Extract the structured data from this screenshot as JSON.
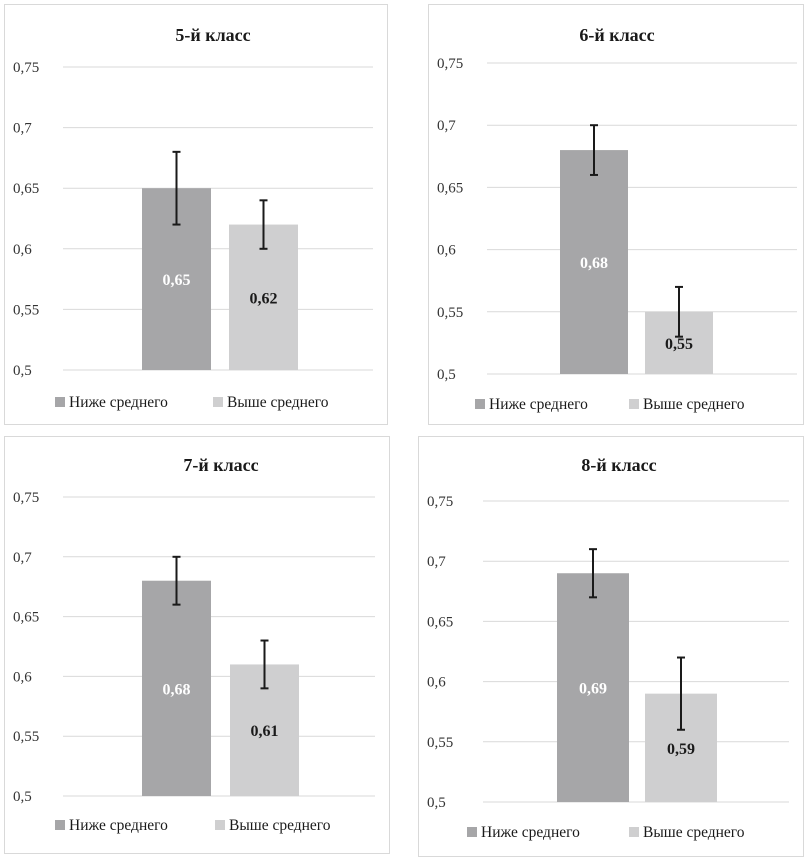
{
  "colors": {
    "below_average": "#a6a6a8",
    "above_average": "#cfcfd0",
    "error_bar": "#1a1a1a",
    "grid": "#d9d9d9",
    "label_on_dark": "#ffffff",
    "label_on_light": "#1a1a1a"
  },
  "chart_data": [
    {
      "type": "bar",
      "title": "5-й класс",
      "categories": [
        "Ниже среднего",
        "Выше среднего"
      ],
      "series": [
        {
          "name": "Ниже среднего",
          "value": 0.65,
          "label": "0,65",
          "error_low": 0.62,
          "error_high": 0.68
        },
        {
          "name": "Выше среднего",
          "value": 0.62,
          "label": "0,62",
          "error_low": 0.6,
          "error_high": 0.64
        }
      ],
      "ylim": [
        0.5,
        0.75
      ],
      "yticks": [
        0.5,
        0.55,
        0.6,
        0.65,
        0.7,
        0.75
      ],
      "ytick_labels": [
        "0,5",
        "0,55",
        "0,6",
        "0,65",
        "0,7",
        "0,75"
      ],
      "grid": true,
      "legend": "bottom"
    },
    {
      "type": "bar",
      "title": "6-й класс",
      "categories": [
        "Ниже среднего",
        "Выше среднего"
      ],
      "series": [
        {
          "name": "Ниже среднего",
          "value": 0.68,
          "label": "0,68",
          "error_low": 0.66,
          "error_high": 0.7
        },
        {
          "name": "Выше среднего",
          "value": 0.55,
          "label": "0,55",
          "error_low": 0.53,
          "error_high": 0.57
        }
      ],
      "ylim": [
        0.5,
        0.75
      ],
      "yticks": [
        0.5,
        0.55,
        0.6,
        0.65,
        0.7,
        0.75
      ],
      "ytick_labels": [
        "0,5",
        "0,55",
        "0,6",
        "0,65",
        "0,7",
        "0,75"
      ],
      "grid": true,
      "legend": "bottom"
    },
    {
      "type": "bar",
      "title": "7-й класс",
      "categories": [
        "Ниже среднего",
        "Выше среднего"
      ],
      "series": [
        {
          "name": "Ниже среднего",
          "value": 0.68,
          "label": "0,68",
          "error_low": 0.66,
          "error_high": 0.7
        },
        {
          "name": "Выше среднего",
          "value": 0.61,
          "label": "0,61",
          "error_low": 0.59,
          "error_high": 0.63
        }
      ],
      "ylim": [
        0.5,
        0.75
      ],
      "yticks": [
        0.5,
        0.55,
        0.6,
        0.65,
        0.7,
        0.75
      ],
      "ytick_labels": [
        "0,5",
        "0,55",
        "0,6",
        "0,65",
        "0,7",
        "0,75"
      ],
      "grid": true,
      "legend": "bottom"
    },
    {
      "type": "bar",
      "title": "8-й класс",
      "categories": [
        "Ниже среднего",
        "Выше среднего"
      ],
      "series": [
        {
          "name": "Ниже среднего",
          "value": 0.69,
          "label": "0,69",
          "error_low": 0.67,
          "error_high": 0.71
        },
        {
          "name": "Выше среднего",
          "value": 0.59,
          "label": "0,59",
          "error_low": 0.56,
          "error_high": 0.62
        }
      ],
      "ylim": [
        0.5,
        0.75
      ],
      "yticks": [
        0.5,
        0.55,
        0.6,
        0.65,
        0.7,
        0.75
      ],
      "ytick_labels": [
        "0,5",
        "0,55",
        "0,6",
        "0,65",
        "0,7",
        "0,75"
      ],
      "grid": true,
      "legend": "bottom"
    }
  ]
}
